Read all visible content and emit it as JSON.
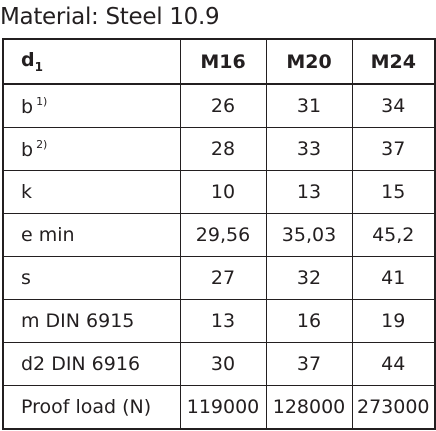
{
  "title": "Material: Steel 10.9",
  "table": {
    "header": {
      "label_main": "d",
      "label_sub": "1",
      "columns": [
        "M16",
        "M20",
        "M24"
      ]
    },
    "rows": [
      {
        "label": "b",
        "note": "1)",
        "values": [
          "26",
          "31",
          "34"
        ]
      },
      {
        "label": "b",
        "note": "2)",
        "values": [
          "28",
          "33",
          "37"
        ]
      },
      {
        "label": "k",
        "note": "",
        "values": [
          "10",
          "13",
          "15"
        ]
      },
      {
        "label": "e min",
        "note": "",
        "values": [
          "29,56",
          "35,03",
          "45,2"
        ]
      },
      {
        "label": "s",
        "note": "",
        "values": [
          "27",
          "32",
          "41"
        ]
      },
      {
        "label": "m DIN 6915",
        "note": "",
        "values": [
          "13",
          "16",
          "19"
        ]
      },
      {
        "label": "d2 DIN 6916",
        "note": "",
        "values": [
          "30",
          "37",
          "44"
        ]
      },
      {
        "label": "Proof load (N)",
        "note": "",
        "values": [
          "119000",
          "128000",
          "273000"
        ]
      }
    ]
  }
}
